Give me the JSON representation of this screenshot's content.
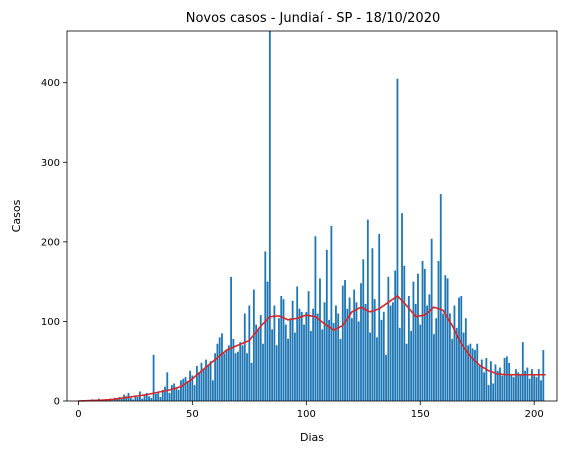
{
  "chart_data": {
    "type": "bar",
    "title": "Novos casos - Jundiaí - SP - 18/10/2020",
    "xlabel": "Dias",
    "ylabel": "Casos",
    "xlim": [
      -5,
      210
    ],
    "ylim": [
      0,
      465
    ],
    "xticks": [
      0,
      50,
      100,
      150,
      200
    ],
    "yticks": [
      0,
      100,
      200,
      300,
      400
    ],
    "grid": false,
    "colors": {
      "bars": "#1f77b4",
      "trend": "#d62728",
      "axes": "#000000"
    },
    "series": [
      {
        "type": "bar",
        "x": [
          0,
          1,
          2,
          3,
          4,
          5,
          6,
          7,
          8,
          9,
          10,
          11,
          12,
          13,
          14,
          15,
          16,
          17,
          18,
          19,
          20,
          21,
          22,
          23,
          24,
          25,
          26,
          27,
          28,
          29,
          30,
          31,
          32,
          33,
          34,
          35,
          36,
          37,
          38,
          39,
          40,
          41,
          42,
          43,
          44,
          45,
          46,
          47,
          48,
          49,
          50,
          51,
          52,
          53,
          54,
          55,
          56,
          57,
          58,
          59,
          60,
          61,
          62,
          63,
          64,
          65,
          66,
          67,
          68,
          69,
          70,
          71,
          72,
          73,
          74,
          75,
          76,
          77,
          78,
          79,
          80,
          81,
          82,
          83,
          84,
          85,
          86,
          87,
          88,
          89,
          90,
          91,
          92,
          93,
          94,
          95,
          96,
          97,
          98,
          99,
          100,
          101,
          102,
          103,
          104,
          105,
          106,
          107,
          108,
          109,
          110,
          111,
          112,
          113,
          114,
          115,
          116,
          117,
          118,
          119,
          120,
          121,
          122,
          123,
          124,
          125,
          126,
          127,
          128,
          129,
          130,
          131,
          132,
          133,
          134,
          135,
          136,
          137,
          138,
          139,
          140,
          141,
          142,
          143,
          144,
          145,
          146,
          147,
          148,
          149,
          150,
          151,
          152,
          153,
          154,
          155,
          156,
          157,
          158,
          159,
          160,
          161,
          162,
          163,
          164,
          165,
          166,
          167,
          168,
          169,
          170,
          171,
          172,
          173,
          174,
          175,
          176,
          177,
          178,
          179,
          180,
          181,
          182,
          183,
          184,
          185,
          186,
          187,
          188,
          189,
          190,
          191,
          192,
          193,
          194,
          195,
          196,
          197,
          198,
          199,
          200,
          201,
          202,
          203,
          204
        ],
        "values": [
          0,
          0,
          1,
          0,
          1,
          0,
          2,
          0,
          1,
          3,
          0,
          1,
          2,
          0,
          3,
          1,
          4,
          2,
          5,
          3,
          8,
          6,
          10,
          4,
          2,
          7,
          5,
          12,
          3,
          8,
          10,
          6,
          4,
          58,
          9,
          12,
          5,
          14,
          18,
          36,
          10,
          20,
          22,
          17,
          14,
          26,
          28,
          30,
          25,
          38,
          32,
          20,
          44,
          36,
          48,
          40,
          52,
          46,
          50,
          26,
          60,
          72,
          80,
          85,
          60,
          64,
          70,
          156,
          78,
          60,
          62,
          74,
          70,
          110,
          60,
          120,
          48,
          140,
          96,
          90,
          108,
          72,
          188,
          150,
          465,
          90,
          120,
          70,
          104,
          132,
          128,
          96,
          78,
          104,
          126,
          86,
          144,
          116,
          112,
          96,
          112,
          138,
          88,
          116,
          207,
          110,
          154,
          90,
          124,
          190,
          102,
          220,
          98,
          120,
          110,
          78,
          145,
          152,
          116,
          130,
          104,
          140,
          124,
          100,
          148,
          178,
          122,
          228,
          86,
          192,
          128,
          80,
          210,
          102,
          112,
          58,
          156,
          120,
          124,
          164,
          405,
          92,
          236,
          170,
          72,
          132,
          88,
          150,
          122,
          160,
          96,
          176,
          166,
          120,
          134,
          204,
          84,
          104,
          176,
          260,
          110,
          158,
          154,
          110,
          78,
          120,
          92,
          130,
          132,
          86,
          104,
          70,
          72,
          66,
          64,
          72,
          44,
          52,
          36,
          54,
          20,
          50,
          22,
          46,
          38,
          42,
          32,
          54,
          56,
          48,
          34,
          30,
          40,
          36,
          32,
          74,
          38,
          42,
          28,
          40,
          32,
          30,
          40,
          26,
          64
        ]
      },
      {
        "type": "line",
        "x": [
          0,
          5,
          10,
          15,
          20,
          25,
          30,
          35,
          40,
          45,
          50,
          55,
          60,
          65,
          70,
          75,
          80,
          84,
          88,
          92,
          96,
          100,
          104,
          108,
          112,
          116,
          120,
          124,
          128,
          132,
          136,
          140,
          144,
          148,
          152,
          156,
          160,
          164,
          168,
          172,
          176,
          180,
          184,
          188,
          192,
          196,
          200,
          205
        ],
        "values": [
          0,
          0.5,
          1,
          2,
          4,
          6,
          8,
          11,
          14,
          18,
          28,
          40,
          52,
          64,
          70,
          76,
          94,
          106,
          107,
          102,
          104,
          108,
          106,
          97,
          89,
          95,
          112,
          118,
          112,
          116,
          124,
          132,
          120,
          106,
          108,
          118,
          114,
          95,
          72,
          56,
          45,
          38,
          34,
          33,
          33,
          33,
          33,
          33
        ]
      }
    ]
  }
}
